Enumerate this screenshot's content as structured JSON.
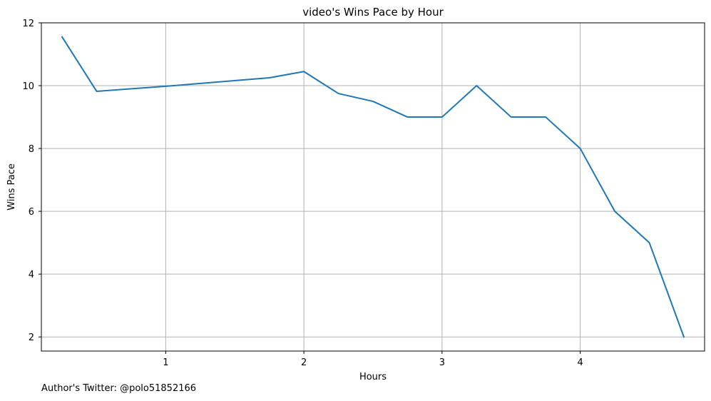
{
  "chart_data": {
    "type": "line",
    "title": "video's Wins Pace by Hour",
    "xlabel": "Hours",
    "ylabel": "Wins Pace",
    "xlim": [
      0.1,
      4.9
    ],
    "ylim": [
      1.55,
      12.0
    ],
    "xticks": [
      1,
      2,
      3,
      4
    ],
    "yticks": [
      2,
      4,
      6,
      8,
      10,
      12
    ],
    "grid": true,
    "series": [
      {
        "color": "#1f77b4",
        "x": [
          0.25,
          0.5,
          1.0,
          1.75,
          2.0,
          2.25,
          2.5,
          2.75,
          3.0,
          3.25,
          3.5,
          3.75,
          4.0,
          4.25,
          4.5,
          4.75
        ],
        "y": [
          11.55,
          9.82,
          9.98,
          10.25,
          10.45,
          9.75,
          9.5,
          9.0,
          9.0,
          10.0,
          9.0,
          9.0,
          8.0,
          6.0,
          5.0,
          2.0
        ]
      }
    ]
  },
  "footer": {
    "author_note": "Author's Twitter: @polo51852166"
  }
}
